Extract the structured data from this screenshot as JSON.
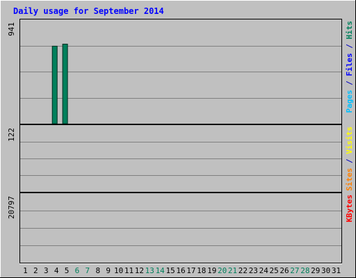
{
  "chart_data": {
    "type": "bar",
    "title": "Daily usage for September 2014",
    "days": [
      "1",
      "2",
      "3",
      "4",
      "5",
      "6",
      "7",
      "8",
      "9",
      "10",
      "11",
      "12",
      "13",
      "14",
      "15",
      "16",
      "17",
      "18",
      "19",
      "20",
      "21",
      "22",
      "23",
      "24",
      "25",
      "26",
      "27",
      "28",
      "29",
      "30",
      "31"
    ],
    "weekend_days": [
      "6",
      "7",
      "13",
      "14",
      "20",
      "21",
      "27",
      "28"
    ],
    "panels": [
      {
        "id": "traffic",
        "scale_max_label": "941",
        "scale_max": 941,
        "axis_label_parts": [
          {
            "text": "Pages",
            "color": "#00c0ff"
          },
          {
            "text": " / ",
            "color": "#0000c0"
          },
          {
            "text": "Files",
            "color": "#0000ff"
          },
          {
            "text": " / ",
            "color": "#0000c0"
          },
          {
            "text": "Hits",
            "color": "#00805c"
          }
        ],
        "series": [
          {
            "name": "Hits",
            "color": "#00805c",
            "values": [
              0,
              0,
              0,
              761,
              781,
              0,
              0,
              0,
              0,
              0,
              0,
              0,
              0,
              0,
              0,
              0,
              0,
              0,
              0,
              0,
              0,
              0,
              0,
              0,
              0,
              0,
              0,
              0,
              0,
              0,
              0
            ]
          },
          {
            "name": "Files",
            "color": "#0000ff",
            "values": [
              0,
              0,
              0,
              0,
              0,
              0,
              0,
              0,
              0,
              0,
              0,
              0,
              0,
              0,
              0,
              0,
              0,
              0,
              0,
              0,
              0,
              0,
              0,
              0,
              0,
              0,
              0,
              0,
              0,
              0,
              0
            ]
          },
          {
            "name": "Pages",
            "color": "#00c0ff",
            "values": [
              0,
              0,
              0,
              0,
              0,
              0,
              0,
              0,
              0,
              0,
              0,
              0,
              0,
              0,
              0,
              0,
              0,
              0,
              0,
              0,
              0,
              0,
              0,
              0,
              0,
              0,
              0,
              0,
              0,
              0,
              0
            ]
          }
        ]
      },
      {
        "id": "visits",
        "scale_max_label": "122",
        "scale_max": 122,
        "axis_label_parts": [
          {
            "text": "Sites",
            "color": "#ff8000"
          },
          {
            "text": " / ",
            "color": "#0000c0"
          },
          {
            "text": "Visits",
            "color": "#ffff00"
          }
        ],
        "series": [
          {
            "name": "Visits",
            "color": "#ffff00",
            "values": [
              0,
              0,
              0,
              0,
              0,
              0,
              0,
              0,
              0,
              0,
              0,
              0,
              0,
              0,
              0,
              0,
              0,
              0,
              0,
              0,
              0,
              0,
              0,
              0,
              0,
              0,
              0,
              0,
              0,
              0,
              0
            ]
          },
          {
            "name": "Sites",
            "color": "#ff8000",
            "values": [
              0,
              0,
              0,
              0,
              0,
              0,
              0,
              0,
              0,
              0,
              0,
              0,
              0,
              0,
              0,
              0,
              0,
              0,
              0,
              0,
              0,
              0,
              0,
              0,
              0,
              0,
              0,
              0,
              0,
              0,
              0
            ]
          }
        ]
      },
      {
        "id": "kbytes",
        "scale_max_label": "20797",
        "scale_max": 20797,
        "axis_label_parts": [
          {
            "text": "KBytes",
            "color": "#ff0000"
          }
        ],
        "series": [
          {
            "name": "KBytes",
            "color": "#ff0000",
            "values": [
              0,
              0,
              0,
              0,
              0,
              0,
              0,
              0,
              0,
              0,
              0,
              0,
              0,
              0,
              0,
              0,
              0,
              0,
              0,
              0,
              0,
              0,
              0,
              0,
              0,
              0,
              0,
              0,
              0,
              0,
              0
            ]
          }
        ]
      }
    ]
  }
}
